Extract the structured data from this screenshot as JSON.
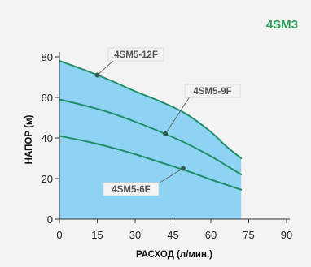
{
  "chart_data": {
    "type": "line",
    "title": "4SM3",
    "xlabel": "РАСХОД (л/мин.)",
    "ylabel": "НАПОР (м)",
    "xlim": [
      0,
      90
    ],
    "ylim": [
      0,
      80
    ],
    "x_ticks": [
      "0",
      "15",
      "30",
      "45",
      "60",
      "75",
      "90"
    ],
    "y_ticks": [
      "0",
      "20",
      "40",
      "60",
      "80"
    ],
    "grid": false,
    "series": [
      {
        "name": "4SM5-12F",
        "points": [
          [
            0,
            78
          ],
          [
            10,
            73.5
          ],
          [
            20,
            68.5
          ],
          [
            30,
            63
          ],
          [
            40,
            58
          ],
          [
            50,
            52
          ],
          [
            60,
            43
          ],
          [
            66,
            36
          ],
          [
            72,
            30
          ]
        ]
      },
      {
        "name": "4SM5-9F",
        "points": [
          [
            0,
            59
          ],
          [
            10,
            56
          ],
          [
            20,
            52.5
          ],
          [
            30,
            48
          ],
          [
            40,
            43
          ],
          [
            50,
            37.5
          ],
          [
            60,
            31
          ],
          [
            66,
            26.5
          ],
          [
            72,
            22
          ]
        ]
      },
      {
        "name": "4SM5-6F",
        "points": [
          [
            0,
            41
          ],
          [
            10,
            38.5
          ],
          [
            20,
            35.5
          ],
          [
            30,
            32
          ],
          [
            40,
            28
          ],
          [
            50,
            24
          ],
          [
            60,
            19.5
          ],
          [
            66,
            17
          ],
          [
            72,
            14.5
          ]
        ]
      }
    ],
    "markers": [
      {
        "series": "4SM5-12F",
        "x": 15,
        "y": 71
      },
      {
        "series": "4SM5-9F",
        "x": 42,
        "y": 42
      },
      {
        "series": "4SM5-6F",
        "x": 49,
        "y": 25
      }
    ]
  },
  "colors": {
    "accent": "#2e9e5b",
    "curve": "#1f8f6a",
    "fill": "#8fd3f4",
    "axis": "#333333",
    "label_box": "#f3f3f3",
    "label_text": "#555555",
    "marker": "#2d5a4a"
  }
}
